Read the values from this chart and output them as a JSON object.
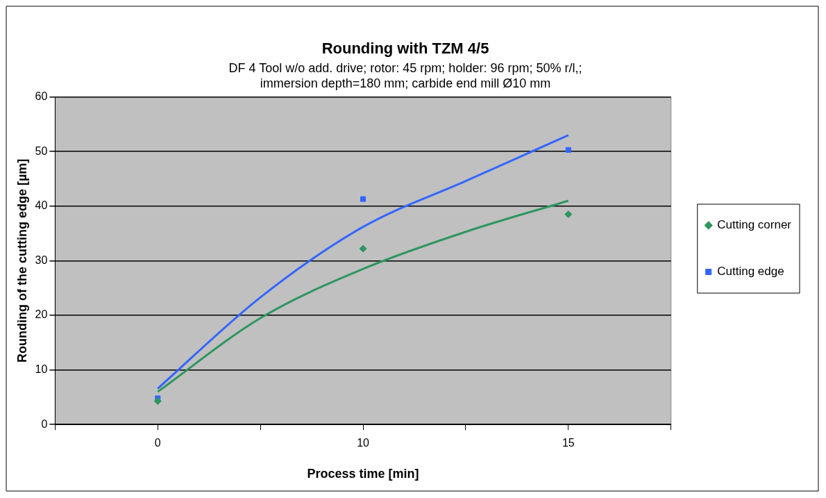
{
  "chart_data": {
    "type": "scatter",
    "title": "Rounding with TZM 4/5",
    "subtitle": "DF 4 Tool w/o add. drive; rotor: 45 rpm; holder: 96 rpm; 50% r/l,;\nimmersion depth=180 mm; carbide end mill Ø10 mm",
    "xlabel": "Process time [min]",
    "ylabel": "Rounding of the cutting edge [µm]",
    "categories": [
      null,
      "0",
      null,
      "10",
      null,
      "15",
      null
    ],
    "series": [
      {
        "name": "Cutting corner",
        "color": "#2e9660",
        "marker": "diamond",
        "values": [
          null,
          4.3,
          null,
          32.2,
          null,
          38.5,
          null
        ]
      },
      {
        "name": "Cutting edge",
        "color": "#3366ff",
        "marker": "square",
        "values": [
          null,
          4.8,
          null,
          41.3,
          null,
          50.3,
          null
        ]
      },
      {
        "type": "line",
        "color": "#2e9660",
        "marker": "none",
        "values": [
          null,
          6,
          19.5,
          28.5,
          35.3,
          41,
          null
        ]
      },
      {
        "type": "line",
        "color": "#3366ff",
        "marker": "none",
        "values": [
          null,
          6.6,
          23.3,
          36.2,
          44.6,
          53,
          null
        ]
      }
    ],
    "ylim": [
      0,
      60
    ],
    "yticks": [
      0,
      10,
      20,
      30,
      40,
      50,
      60
    ],
    "grid": "y",
    "legend": "right"
  }
}
